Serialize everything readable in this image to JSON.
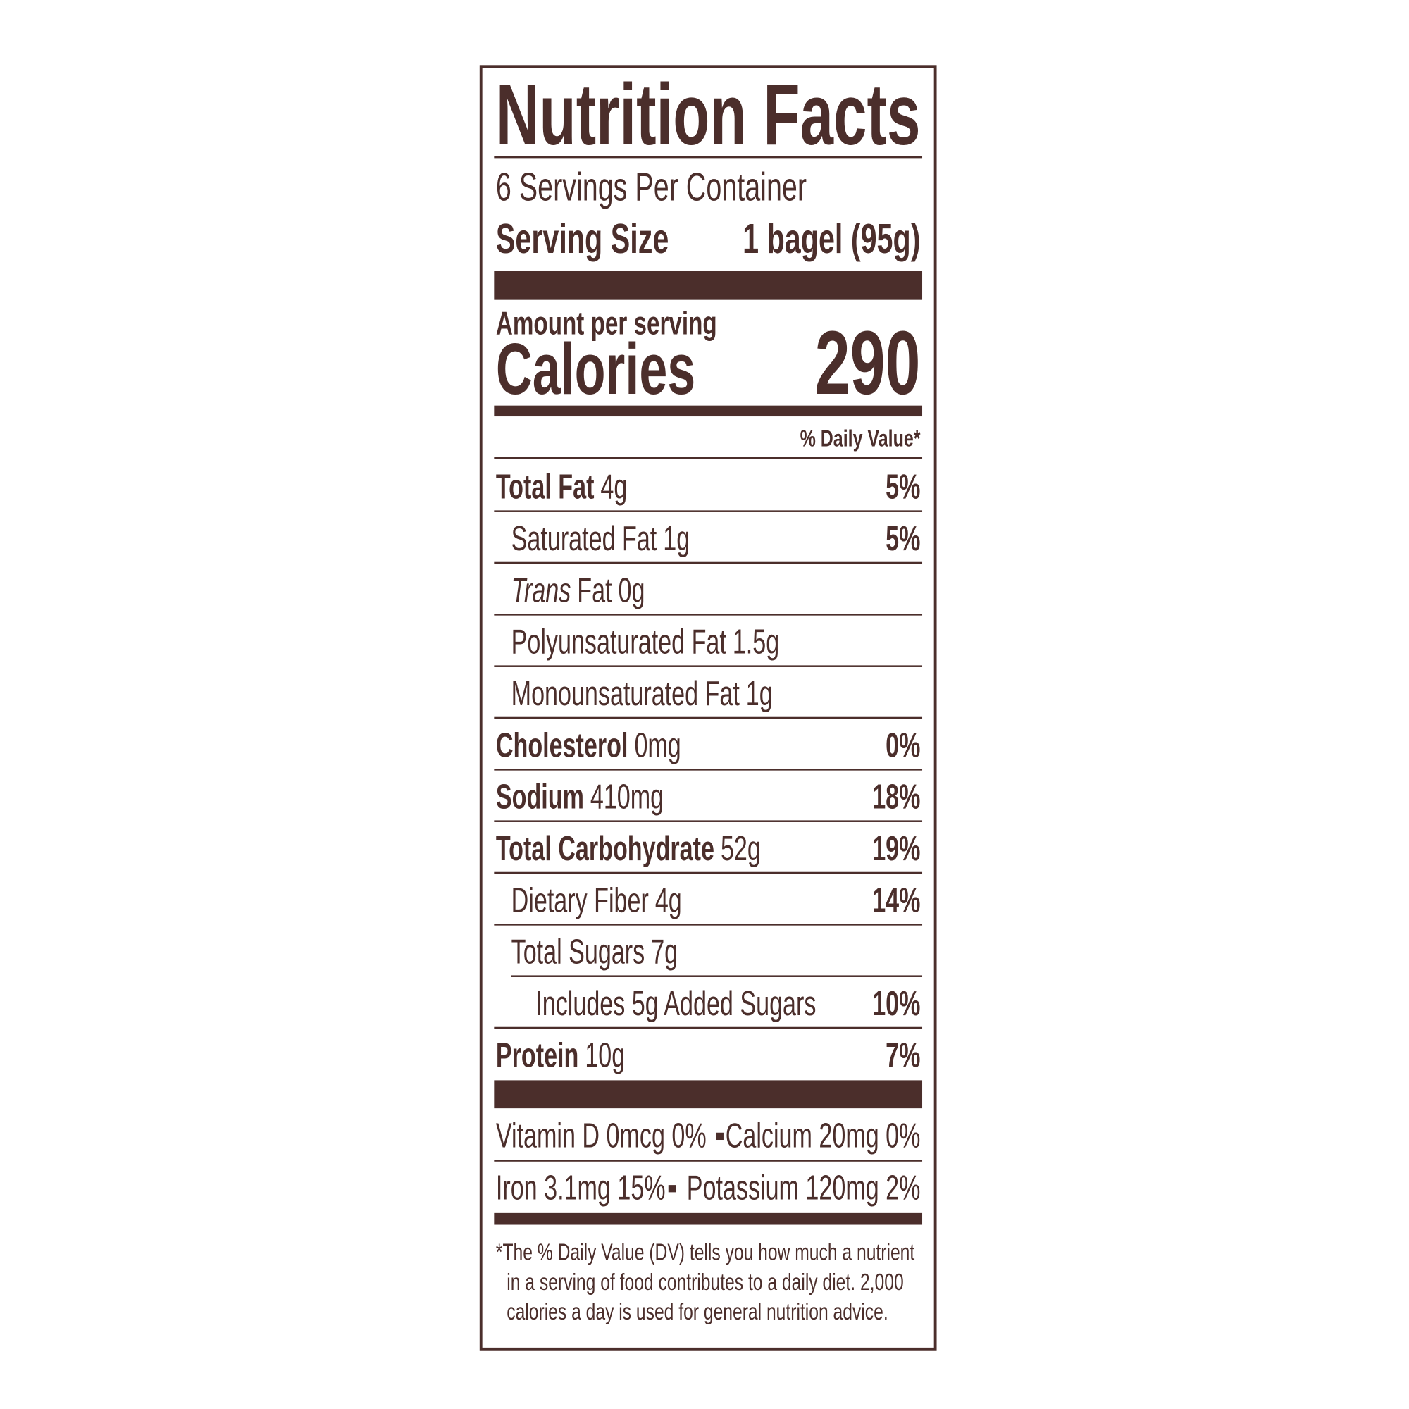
{
  "title": "Nutrition Facts",
  "servings": "6 Servings Per Container",
  "serving_size": {
    "label": "Serving Size",
    "value": "1 bagel (95g)"
  },
  "amount_per_serving": "Amount per serving",
  "calories": {
    "label": "Calories",
    "value": "290"
  },
  "daily_value_header": "% Daily Value*",
  "nutrients": [
    {
      "name": "Total Fat",
      "amount": "4g",
      "dv": "5%"
    },
    {
      "name": "Saturated Fat",
      "amount": "1g",
      "dv": "5%"
    },
    {
      "name_italic": "Trans",
      "name": "Fat",
      "amount": "0g"
    },
    {
      "name": "Polyunsaturated Fat",
      "amount": "1.5g"
    },
    {
      "name": "Monounsaturated Fat",
      "amount": "1g"
    },
    {
      "name": "Cholesterol",
      "amount": "0mg",
      "dv": "0%"
    },
    {
      "name": "Sodium",
      "amount": "410mg",
      "dv": "18%"
    },
    {
      "name": "Total Carbohydrate",
      "amount": "52g",
      "dv": "19%"
    },
    {
      "name": "Dietary Fiber",
      "amount": "4g",
      "dv": "14%"
    },
    {
      "name": "Total Sugars",
      "amount": "7g"
    },
    {
      "name": "Includes 5g Added Sugars",
      "dv": "10%"
    },
    {
      "name": "Protein",
      "amount": "10g",
      "dv": "7%"
    }
  ],
  "vitamins": [
    [
      "Vitamin D 0mcg 0%",
      "Calcium 20mg 0%"
    ],
    [
      "Iron 3.1mg 15%",
      "Potassium 120mg 2%"
    ]
  ],
  "footnote": [
    "*The % Daily Value (DV) tells you how much a nutrient",
    "in a serving of food contributes to a daily diet. 2,000",
    "calories a day is used for general nutrition advice."
  ]
}
